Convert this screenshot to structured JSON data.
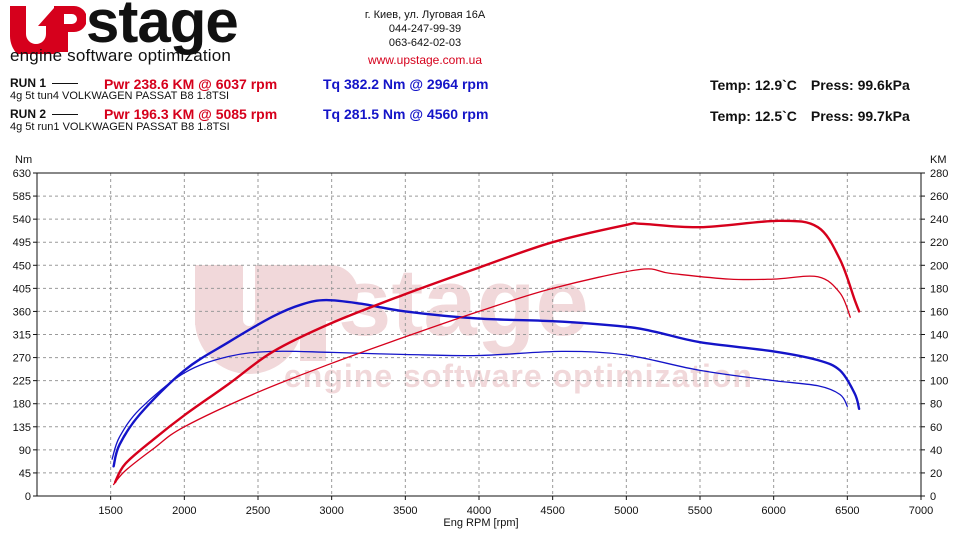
{
  "header": {
    "logo_text": "UPstage",
    "logo_tagline": "engine software optimization",
    "address": "г. Киев, ул. Луговая 16А",
    "phone1": "044-247-99-39",
    "phone2": "063-642-02-03",
    "website": "www.upstage.com.ua"
  },
  "runs": [
    {
      "label": "RUN 1",
      "description": "4g 5t tun4 VOLKWAGEN PASSAT B8 1.8TSI",
      "power_text": "Pwr  238.6 KM @ 6037 rpm",
      "torque_text": "Tq  382.2 Nm @ 2964 rpm",
      "temp_text": "Temp: 12.9`C",
      "press_text": "Press: 99.6kPa"
    },
    {
      "label": "RUN 2",
      "description": "4g 5t run1 VOLKWAGEN PASSAT B8 1.8TSI",
      "power_text": "Pwr  196.3 KM @ 5085 rpm",
      "torque_text": "Tq  281.5 Nm @ 4560 rpm",
      "temp_text": "Temp: 12.5`C",
      "press_text": "Press: 99.7kPa"
    }
  ],
  "colors": {
    "power": "#d6001c",
    "torque": "#1414c8",
    "grid": "#9a9a9a",
    "watermark": "#e6b9bd"
  },
  "chart_data": {
    "type": "line",
    "xlabel": "Eng RPM [rpm]",
    "ylabel": "Nm",
    "y2label": "KM",
    "xlim": [
      1000,
      7000
    ],
    "ylim": [
      0,
      630
    ],
    "y2lim": [
      0,
      280
    ],
    "x_ticks": [
      1500,
      2000,
      2500,
      3000,
      3500,
      4000,
      4500,
      5000,
      5500,
      6000,
      6500,
      7000
    ],
    "y_ticks": [
      0,
      45,
      90,
      135,
      180,
      225,
      270,
      315,
      360,
      405,
      450,
      495,
      540,
      585,
      630
    ],
    "y2_ticks": [
      0,
      20,
      40,
      60,
      80,
      100,
      120,
      140,
      160,
      180,
      200,
      220,
      240,
      260,
      280
    ],
    "grid": true,
    "series": [
      {
        "name": "RUN 1 Tq",
        "quantity": "torque",
        "axis": "left",
        "color": "#1414c8",
        "weight": "bold",
        "points": [
          [
            1520,
            58
          ],
          [
            1560,
            100
          ],
          [
            1700,
            160
          ],
          [
            2000,
            245
          ],
          [
            2300,
            300
          ],
          [
            2600,
            350
          ],
          [
            2800,
            374
          ],
          [
            2964,
            382
          ],
          [
            3200,
            375
          ],
          [
            3500,
            360
          ],
          [
            4000,
            346
          ],
          [
            4500,
            341
          ],
          [
            5000,
            330
          ],
          [
            5200,
            320
          ],
          [
            5500,
            300
          ],
          [
            6000,
            282
          ],
          [
            6300,
            265
          ],
          [
            6450,
            245
          ],
          [
            6550,
            200
          ],
          [
            6580,
            170
          ]
        ]
      },
      {
        "name": "RUN 2 Tq",
        "quantity": "torque",
        "axis": "left",
        "color": "#1414c8",
        "weight": "thin",
        "points": [
          [
            1510,
            72
          ],
          [
            1560,
            115
          ],
          [
            1700,
            170
          ],
          [
            2000,
            240
          ],
          [
            2300,
            272
          ],
          [
            2600,
            282
          ],
          [
            3000,
            280
          ],
          [
            3500,
            276
          ],
          [
            4000,
            274
          ],
          [
            4560,
            282
          ],
          [
            5000,
            275
          ],
          [
            5500,
            245
          ],
          [
            6000,
            225
          ],
          [
            6300,
            215
          ],
          [
            6450,
            198
          ],
          [
            6500,
            175
          ]
        ]
      },
      {
        "name": "RUN 1 Pwr",
        "quantity": "power",
        "axis": "right",
        "color": "#d6001c",
        "weight": "bold",
        "points": [
          [
            1530,
            12
          ],
          [
            1600,
            28
          ],
          [
            1800,
            50
          ],
          [
            2000,
            70
          ],
          [
            2300,
            97
          ],
          [
            2600,
            125
          ],
          [
            3000,
            150
          ],
          [
            3500,
            175
          ],
          [
            4000,
            198
          ],
          [
            4500,
            220
          ],
          [
            5000,
            235
          ],
          [
            5100,
            236
          ],
          [
            5500,
            233
          ],
          [
            6037,
            238.6
          ],
          [
            6300,
            233
          ],
          [
            6450,
            205
          ],
          [
            6550,
            170
          ],
          [
            6580,
            160
          ]
        ]
      },
      {
        "name": "RUN 2 Pwr",
        "quantity": "power",
        "axis": "right",
        "color": "#d6001c",
        "weight": "thin",
        "points": [
          [
            1520,
            10
          ],
          [
            1600,
            22
          ],
          [
            1800,
            42
          ],
          [
            2000,
            60
          ],
          [
            2500,
            90
          ],
          [
            3000,
            115
          ],
          [
            3500,
            138
          ],
          [
            4000,
            160
          ],
          [
            4500,
            180
          ],
          [
            5085,
            196.3
          ],
          [
            5300,
            193
          ],
          [
            5700,
            188
          ],
          [
            6000,
            188
          ],
          [
            6300,
            190
          ],
          [
            6450,
            176
          ],
          [
            6520,
            155
          ]
        ]
      }
    ]
  }
}
